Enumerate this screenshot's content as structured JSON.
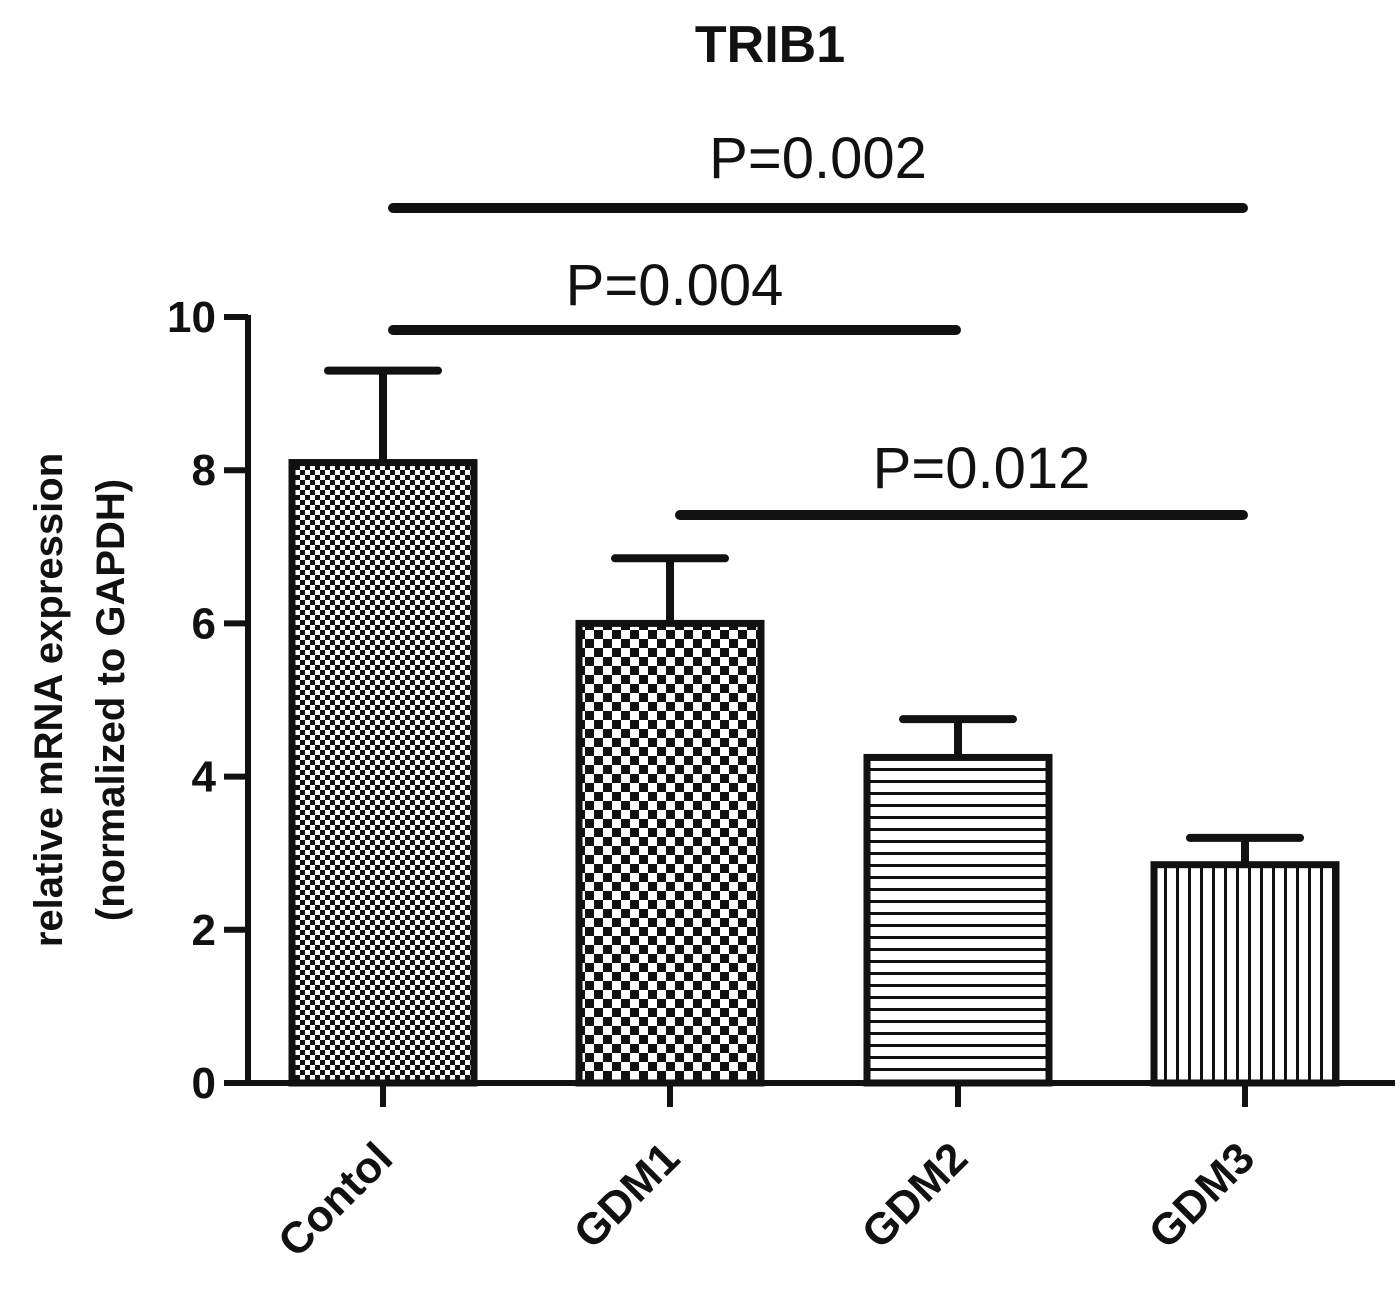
{
  "chart_data": {
    "type": "bar",
    "title": "TRIB1",
    "ylabel_lines": [
      "relative mRNA  expression",
      "(normalized to GAPDH)"
    ],
    "xlabel": "",
    "categories": [
      "Contol",
      "GDM1",
      "GDM2",
      "GDM3"
    ],
    "values": [
      8.1,
      6.0,
      4.25,
      2.85
    ],
    "errors": [
      1.2,
      0.85,
      0.5,
      0.35
    ],
    "ylim": [
      0,
      10
    ],
    "yticks": [
      "0",
      "2",
      "4",
      "6",
      "8",
      "10"
    ],
    "grid": false,
    "patterns": [
      "fine-checker",
      "checker",
      "horizontal-lines",
      "vertical-lines"
    ],
    "comparisons": [
      {
        "from": 0,
        "to": 3,
        "label": "P=0.002"
      },
      {
        "from": 0,
        "to": 2,
        "label": "P=0.004"
      },
      {
        "from": 1,
        "to": 3,
        "label": "P=0.012"
      }
    ],
    "colors": {
      "ink": "#111111",
      "background": "#ffffff"
    }
  }
}
